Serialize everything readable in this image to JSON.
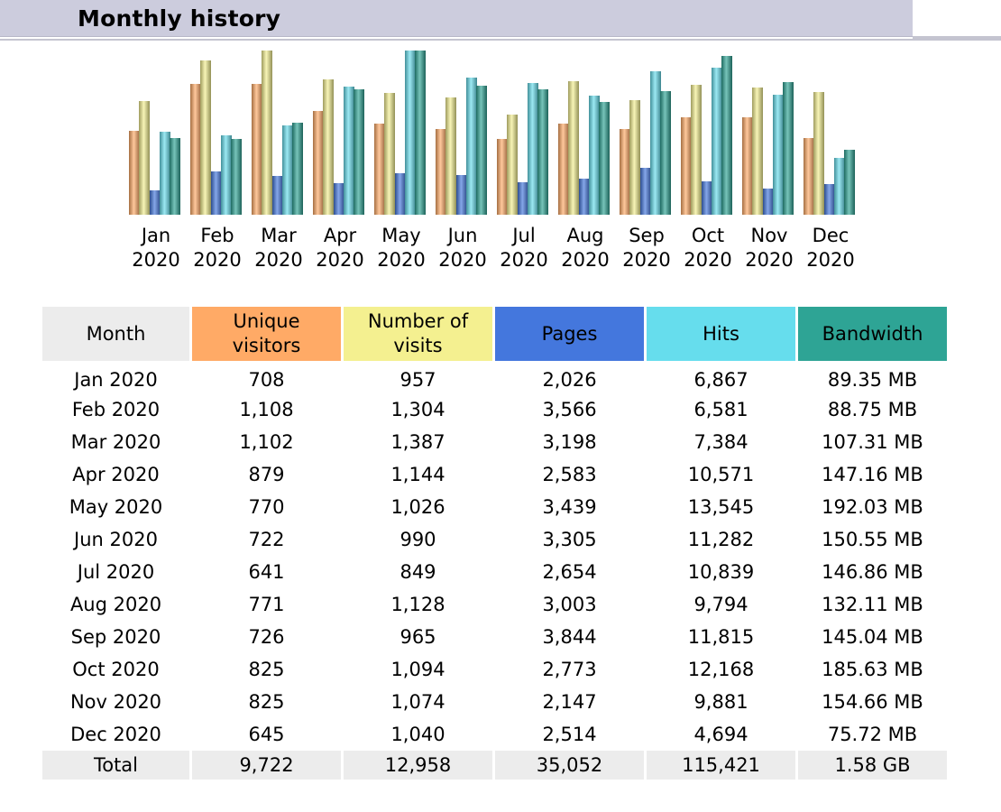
{
  "header": {
    "title": "Monthly history"
  },
  "colors": {
    "visitors": "#ffaa66",
    "visits": "#f4f090",
    "pages": "#4477dd",
    "hits": "#66dded",
    "bandwidth": "#2ea495"
  },
  "table": {
    "headers": {
      "month": "Month",
      "visitors_line1": "Unique",
      "visitors_line2": "visitors",
      "visits_line1": "Number of",
      "visits_line2": "visits",
      "pages": "Pages",
      "hits": "Hits",
      "bandwidth": "Bandwidth"
    },
    "rows": [
      {
        "month": "Jan 2020",
        "visitors": "708",
        "visits": "957",
        "pages": "2,026",
        "hits": "6,867",
        "bandwidth": "89.35 MB"
      },
      {
        "month": "Feb 2020",
        "visitors": "1,108",
        "visits": "1,304",
        "pages": "3,566",
        "hits": "6,581",
        "bandwidth": "88.75 MB"
      },
      {
        "month": "Mar 2020",
        "visitors": "1,102",
        "visits": "1,387",
        "pages": "3,198",
        "hits": "7,384",
        "bandwidth": "107.31 MB"
      },
      {
        "month": "Apr 2020",
        "visitors": "879",
        "visits": "1,144",
        "pages": "2,583",
        "hits": "10,571",
        "bandwidth": "147.16 MB"
      },
      {
        "month": "May 2020",
        "visitors": "770",
        "visits": "1,026",
        "pages": "3,439",
        "hits": "13,545",
        "bandwidth": "192.03 MB"
      },
      {
        "month": "Jun 2020",
        "visitors": "722",
        "visits": "990",
        "pages": "3,305",
        "hits": "11,282",
        "bandwidth": "150.55 MB"
      },
      {
        "month": "Jul 2020",
        "visitors": "641",
        "visits": "849",
        "pages": "2,654",
        "hits": "10,839",
        "bandwidth": "146.86 MB"
      },
      {
        "month": "Aug 2020",
        "visitors": "771",
        "visits": "1,128",
        "pages": "3,003",
        "hits": "9,794",
        "bandwidth": "132.11 MB"
      },
      {
        "month": "Sep 2020",
        "visitors": "726",
        "visits": "965",
        "pages": "3,844",
        "hits": "11,815",
        "bandwidth": "145.04 MB"
      },
      {
        "month": "Oct 2020",
        "visitors": "825",
        "visits": "1,094",
        "pages": "2,773",
        "hits": "12,168",
        "bandwidth": "185.63 MB"
      },
      {
        "month": "Nov 2020",
        "visitors": "825",
        "visits": "1,074",
        "pages": "2,147",
        "hits": "9,881",
        "bandwidth": "154.66 MB"
      },
      {
        "month": "Dec 2020",
        "visitors": "645",
        "visits": "1,040",
        "pages": "2,514",
        "hits": "4,694",
        "bandwidth": "75.72 MB"
      }
    ],
    "total": {
      "month": "Total",
      "visitors": "9,722",
      "visits": "12,958",
      "pages": "35,052",
      "hits": "115,421",
      "bandwidth": "1.58 GB"
    }
  },
  "chart_data": {
    "type": "bar",
    "categories": [
      {
        "month": "Jan",
        "year": "2020"
      },
      {
        "month": "Feb",
        "year": "2020"
      },
      {
        "month": "Mar",
        "year": "2020"
      },
      {
        "month": "Apr",
        "year": "2020"
      },
      {
        "month": "May",
        "year": "2020"
      },
      {
        "month": "Jun",
        "year": "2020"
      },
      {
        "month": "Jul",
        "year": "2020"
      },
      {
        "month": "Aug",
        "year": "2020"
      },
      {
        "month": "Sep",
        "year": "2020"
      },
      {
        "month": "Oct",
        "year": "2020"
      },
      {
        "month": "Nov",
        "year": "2020"
      },
      {
        "month": "Dec",
        "year": "2020"
      }
    ],
    "series": [
      {
        "key": "visitors",
        "color": "#ffaa66",
        "values": [
          708,
          1108,
          1102,
          879,
          770,
          722,
          641,
          771,
          726,
          825,
          825,
          645
        ]
      },
      {
        "key": "visits",
        "color": "#f4f090",
        "values": [
          957,
          1304,
          1387,
          1144,
          1026,
          990,
          849,
          1128,
          965,
          1094,
          1074,
          1040
        ]
      },
      {
        "key": "pages",
        "color": "#4477dd",
        "values": [
          2026,
          3566,
          3198,
          2583,
          3439,
          3305,
          2654,
          3003,
          3844,
          2773,
          2147,
          2514
        ]
      },
      {
        "key": "hits",
        "color": "#66dded",
        "values": [
          6867,
          6581,
          7384,
          10571,
          13545,
          11282,
          10839,
          9794,
          11815,
          12168,
          9881,
          4694
        ]
      },
      {
        "key": "bandwidth",
        "color": "#2ea495",
        "values": [
          89.35,
          88.75,
          107.31,
          147.16,
          192.03,
          150.55,
          146.86,
          132.11,
          145.04,
          185.63,
          154.66,
          75.72
        ]
      }
    ],
    "scale_groups": [
      [
        "visitors",
        "visits"
      ],
      [
        "pages",
        "hits"
      ],
      [
        "bandwidth"
      ]
    ],
    "title": "",
    "xlabel": "",
    "ylabel": ""
  }
}
